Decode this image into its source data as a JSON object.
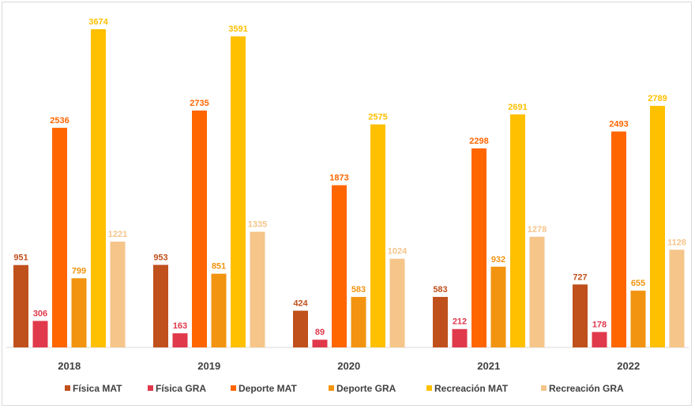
{
  "chart_data": {
    "type": "bar",
    "title": "",
    "xlabel": "",
    "ylabel": "",
    "ylim": [
      0,
      3674
    ],
    "grid": false,
    "legend_position": "bottom",
    "categories": [
      "2018",
      "2019",
      "2020",
      "2021",
      "2022"
    ],
    "series": [
      {
        "name": "Física MAT",
        "color": "#c0501c",
        "values": [
          951,
          953,
          424,
          583,
          727
        ]
      },
      {
        "name": "Física GRA",
        "color": "#e0394b",
        "values": [
          306,
          163,
          89,
          212,
          178
        ]
      },
      {
        "name": "Deporte MAT",
        "color": "#ff6600",
        "values": [
          2536,
          2735,
          1873,
          2298,
          2493
        ]
      },
      {
        "name": "Deporte GRA",
        "color": "#f29410",
        "values": [
          799,
          851,
          583,
          932,
          655
        ]
      },
      {
        "name": "Recreación MAT",
        "color": "#ffc000",
        "values": [
          3674,
          3591,
          2575,
          2691,
          2789
        ]
      },
      {
        "name": "Recreación GRA",
        "color": "#f5c58a",
        "values": [
          1221,
          1335,
          1024,
          1278,
          1128
        ]
      }
    ]
  }
}
